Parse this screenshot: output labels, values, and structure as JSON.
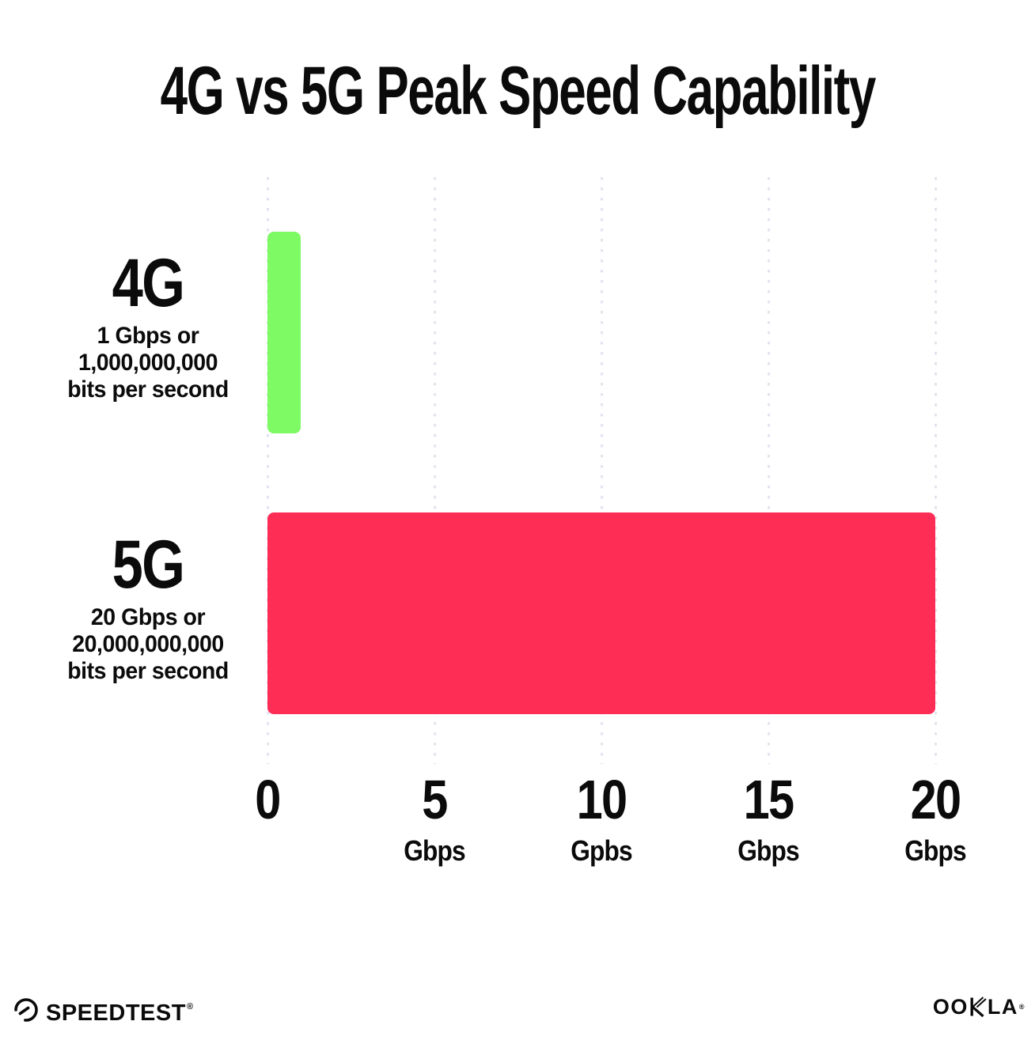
{
  "title": "4G vs 5G Peak Speed Capability",
  "chart_data": {
    "type": "bar",
    "orientation": "horizontal",
    "title": "4G vs 5G Peak Speed Capability",
    "categories": [
      "4G",
      "5G"
    ],
    "values": [
      1,
      20
    ],
    "value_unit": "Gbps",
    "xlim": [
      0,
      20
    ],
    "grid": "vertical dotted gridlines at 0, 5, 10, 15, 20",
    "legend": "none",
    "bars": [
      {
        "category": "4G",
        "value_gbps": 1,
        "color": "#7DFA64",
        "description_lines": [
          "1 Gbps or",
          "1,000,000,000",
          "bits per second"
        ]
      },
      {
        "category": "5G",
        "value_gbps": 20,
        "color": "#FD2D56",
        "description_lines": [
          "20 Gbps or",
          "20,000,000,000",
          "bits per second"
        ]
      }
    ],
    "x_axis_ticks": [
      {
        "value": 0,
        "label": "0",
        "unit": ""
      },
      {
        "value": 5,
        "label": "5",
        "unit": "Gbps"
      },
      {
        "value": 10,
        "label": "10",
        "unit": "Gpbs"
      },
      {
        "value": 15,
        "label": "15",
        "unit": "Gbps"
      },
      {
        "value": 20,
        "label": "20",
        "unit": "Gbps"
      }
    ]
  },
  "footer": {
    "speedtest_wordmark": "SPEEDTEST",
    "speedtest_trademark": "®",
    "ookla_wordmark_left": "OO",
    "ookla_wordmark_right": "LA",
    "ookla_trademark": "®"
  },
  "colors": {
    "background": "#FFFFFF",
    "text": "#0B0B0B",
    "bar_4g": "#7DFA64",
    "bar_5g": "#FD2D56",
    "gridline": "#E3E3EF"
  }
}
